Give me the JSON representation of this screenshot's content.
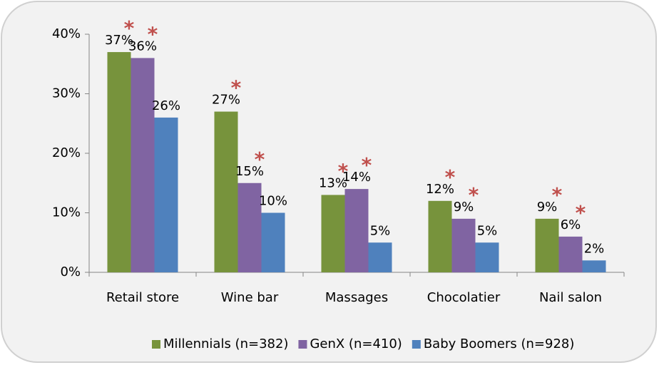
{
  "chart_data": {
    "type": "bar",
    "categories": [
      "Retail store",
      "Wine bar",
      "Massages",
      "Chocolatier",
      "Nail salon"
    ],
    "series": [
      {
        "name": "Millennials (n=382)",
        "color": "#77933c",
        "values": [
          37,
          27,
          13,
          12,
          9
        ],
        "value_labels": [
          "37%",
          "27%",
          "13%",
          "12%",
          "9%"
        ],
        "annotations": [
          "*",
          "*",
          "*",
          "*",
          "*"
        ]
      },
      {
        "name": "GenX (n=410)",
        "color": "#8064a2",
        "values": [
          36,
          15,
          14,
          9,
          6
        ],
        "value_labels": [
          "36%",
          "15%",
          "14%",
          "9%",
          "6%"
        ],
        "annotations": [
          "*",
          "*",
          "*",
          "*",
          "*"
        ]
      },
      {
        "name": "Baby Boomers (n=928)",
        "color": "#4f81bd",
        "values": [
          26,
          10,
          5,
          5,
          2
        ],
        "value_labels": [
          "26%",
          "10%",
          "5%",
          "5%",
          "2%"
        ]
      }
    ],
    "annotation_color": "#c0504d",
    "ylim": [
      0,
      40
    ],
    "yticks": [
      {
        "value": 0,
        "label": "0%"
      },
      {
        "value": 10,
        "label": "10%"
      },
      {
        "value": 20,
        "label": "20%"
      },
      {
        "value": 30,
        "label": "30%"
      },
      {
        "value": 40,
        "label": "40%"
      }
    ],
    "legend": "bottom"
  }
}
